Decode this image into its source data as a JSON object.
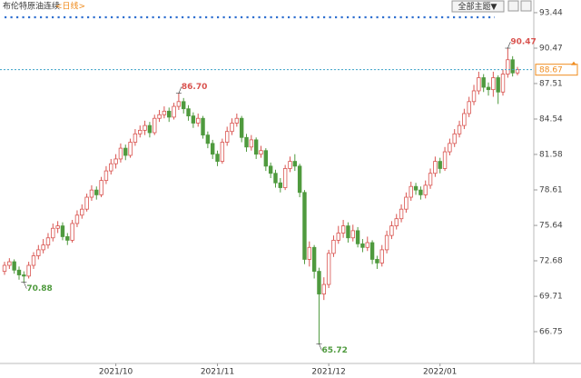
{
  "chart_data": {
    "type": "candlestick",
    "title": "布伦特原油连续",
    "period": "<日线>",
    "menu_button": "全部主题▼",
    "up_color": "#d9534f",
    "down_color": "#4f9a3e",
    "last_color": "#f08c1e",
    "ylim": [
      64.09,
      94.5
    ],
    "yticks": [
      93.44,
      90.47,
      87.51,
      84.54,
      81.58,
      78.61,
      75.64,
      72.68,
      69.71,
      66.75
    ],
    "last_price": 88.67,
    "annotations": [
      {
        "label": "86.70",
        "value": 86.7
      },
      {
        "label": "70.88",
        "value": 70.88
      },
      {
        "label": "65.72",
        "value": 65.72
      },
      {
        "label": "90.47",
        "value": 90.47
      }
    ],
    "categories": [
      null,
      null,
      null,
      null,
      null,
      null,
      null,
      null,
      null,
      null,
      null,
      null,
      null,
      null,
      null,
      null,
      null,
      null,
      null,
      null,
      null,
      null,
      null,
      "2021/10",
      null,
      null,
      null,
      null,
      null,
      null,
      null,
      null,
      null,
      null,
      null,
      null,
      null,
      null,
      null,
      null,
      null,
      null,
      null,
      null,
      "2021/11",
      null,
      null,
      null,
      null,
      null,
      null,
      null,
      null,
      null,
      null,
      null,
      null,
      null,
      null,
      null,
      null,
      null,
      null,
      null,
      null,
      null,
      null,
      "2021/12",
      null,
      null,
      null,
      null,
      null,
      null,
      null,
      null,
      null,
      null,
      null,
      null,
      null,
      null,
      null,
      null,
      null,
      null,
      null,
      null,
      null,
      null,
      "2022/01",
      null,
      null,
      null,
      null,
      null,
      null,
      null,
      null,
      null,
      null,
      null,
      null,
      null,
      null,
      null,
      null
    ],
    "open": [
      71.8,
      72.3,
      72.6,
      71.9,
      71.5,
      71.4,
      72.3,
      73.1,
      73.6,
      74.0,
      74.6,
      75.4,
      75.6,
      74.7,
      74.4,
      75.8,
      76.5,
      77.0,
      78.0,
      78.6,
      78.2,
      79.4,
      80.2,
      80.8,
      81.2,
      82.1,
      81.5,
      82.6,
      83.3,
      83.6,
      84.0,
      83.4,
      84.6,
      84.9,
      85.2,
      84.7,
      85.6,
      86.0,
      85.4,
      84.8,
      84.2,
      84.6,
      83.2,
      82.5,
      81.6,
      81.0,
      82.6,
      83.5,
      84.2,
      84.6,
      83.0,
      82.2,
      82.8,
      81.6,
      81.9,
      80.6,
      80.0,
      79.2,
      78.8,
      80.4,
      81.0,
      80.6,
      78.4,
      72.8,
      73.8,
      71.8,
      69.9,
      70.7,
      73.3,
      74.4,
      75.0,
      75.6,
      74.6,
      75.2,
      74.1,
      73.8,
      74.2,
      72.8,
      72.5,
      73.6,
      74.8,
      75.6,
      76.2,
      77.0,
      78.0,
      78.9,
      78.6,
      78.2,
      79.0,
      80.0,
      81.0,
      80.4,
      81.8,
      82.5,
      83.3,
      84.0,
      85.0,
      86.0,
      86.9,
      88.0,
      87.2,
      87.0,
      88.0,
      86.8,
      88.3,
      89.5,
      88.4
    ],
    "high": [
      72.6,
      72.9,
      72.8,
      72.2,
      71.8,
      72.6,
      73.4,
      74.0,
      74.5,
      75.0,
      75.8,
      76.0,
      75.9,
      75.0,
      76.1,
      76.9,
      77.4,
      78.3,
      79.0,
      78.9,
      79.7,
      80.6,
      81.2,
      81.6,
      82.5,
      82.4,
      82.9,
      83.7,
      84.0,
      84.4,
      84.3,
      84.9,
      85.3,
      85.6,
      85.5,
      85.9,
      86.7,
      86.3,
      85.7,
      85.1,
      85.0,
      84.8,
      83.5,
      82.8,
      81.9,
      82.9,
      83.9,
      84.6,
      85.0,
      84.8,
      83.3,
      83.2,
      83.0,
      82.3,
      82.1,
      80.9,
      80.3,
      79.6,
      80.7,
      81.4,
      81.6,
      80.8,
      78.6,
      74.3,
      74.0,
      72.1,
      71.3,
      73.6,
      74.8,
      75.6,
      76.1,
      75.9,
      75.7,
      75.5,
      74.5,
      74.7,
      74.4,
      73.1,
      74.0,
      75.2,
      76.0,
      76.6,
      77.4,
      78.4,
      79.3,
      79.2,
      78.9,
      79.4,
      80.4,
      81.4,
      81.3,
      82.2,
      82.9,
      83.7,
      84.4,
      85.4,
      86.4,
      87.4,
      88.5,
      88.3,
      87.6,
      88.5,
      88.2,
      88.7,
      90.47,
      89.8,
      88.9
    ],
    "low": [
      71.5,
      72.0,
      71.6,
      71.1,
      70.88,
      71.2,
      72.0,
      72.8,
      73.3,
      73.7,
      74.3,
      75.0,
      74.4,
      74.0,
      74.2,
      75.5,
      76.2,
      76.8,
      77.7,
      77.8,
      78.0,
      79.1,
      79.9,
      80.4,
      80.9,
      81.1,
      81.3,
      82.3,
      83.0,
      83.2,
      83.0,
      83.2,
      84.3,
      84.6,
      84.3,
      84.5,
      85.3,
      85.0,
      84.4,
      83.8,
      83.9,
      82.9,
      82.1,
      81.2,
      80.6,
      80.8,
      82.3,
      83.2,
      83.9,
      82.6,
      81.8,
      81.9,
      81.2,
      81.3,
      80.2,
      79.6,
      78.8,
      78.4,
      78.6,
      80.1,
      80.2,
      78.0,
      72.4,
      72.2,
      71.2,
      65.72,
      69.4,
      70.4,
      73.0,
      74.1,
      74.6,
      74.2,
      74.3,
      73.8,
      73.4,
      73.5,
      72.4,
      72.0,
      72.2,
      73.3,
      74.5,
      75.3,
      75.9,
      76.7,
      77.7,
      78.2,
      77.8,
      77.9,
      78.7,
      79.7,
      80.0,
      80.2,
      81.5,
      82.2,
      83.0,
      83.7,
      84.7,
      85.7,
      86.6,
      86.8,
      86.5,
      86.4,
      85.8,
      86.5,
      88.0,
      88.1,
      88.2
    ],
    "close": [
      72.3,
      72.6,
      71.9,
      71.5,
      71.4,
      72.3,
      73.1,
      73.6,
      74.0,
      74.6,
      75.4,
      75.6,
      74.7,
      74.4,
      75.8,
      76.5,
      77.0,
      78.0,
      78.6,
      78.2,
      79.4,
      80.2,
      80.8,
      81.2,
      82.1,
      81.5,
      82.6,
      83.3,
      83.6,
      84.0,
      83.4,
      84.6,
      84.9,
      85.2,
      84.7,
      85.6,
      86.0,
      85.4,
      84.8,
      84.2,
      84.6,
      83.2,
      82.5,
      81.6,
      81.0,
      82.6,
      83.5,
      84.2,
      84.6,
      83.0,
      82.2,
      82.8,
      81.6,
      81.9,
      80.6,
      80.0,
      79.2,
      78.8,
      80.4,
      81.0,
      80.6,
      78.4,
      72.8,
      73.8,
      71.8,
      69.9,
      70.7,
      73.3,
      74.4,
      75.0,
      75.6,
      74.6,
      75.2,
      74.1,
      73.8,
      74.2,
      72.8,
      72.5,
      73.6,
      74.8,
      75.6,
      76.2,
      77.0,
      78.0,
      78.9,
      78.6,
      78.2,
      79.0,
      80.0,
      81.0,
      80.4,
      81.8,
      82.5,
      83.3,
      84.0,
      85.0,
      86.0,
      86.9,
      88.0,
      87.2,
      87.0,
      88.0,
      86.8,
      88.3,
      89.5,
      88.4,
      88.67
    ]
  }
}
